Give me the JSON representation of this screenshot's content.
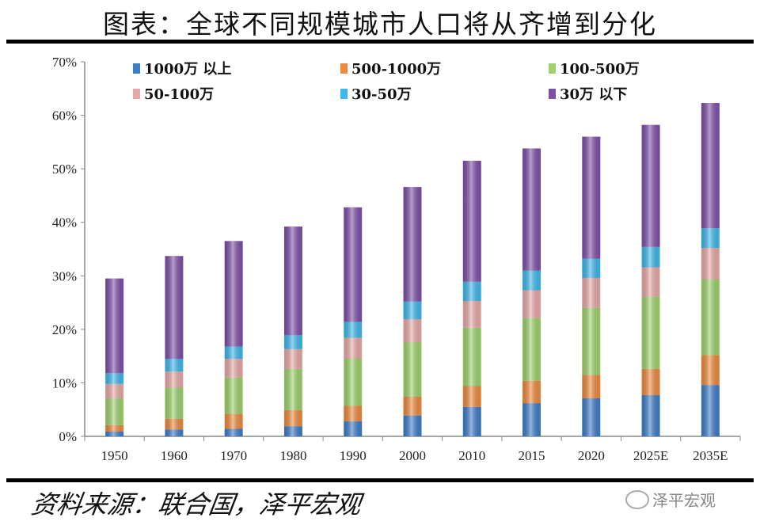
{
  "title": "图表：全球不同规模城市人口将从齐增到分化",
  "source": "资料来源：联合国，泽平宏观",
  "watermark": "泽平宏观",
  "chart_data": {
    "type": "bar",
    "stacked": true,
    "title": "",
    "xlabel": "",
    "ylabel": "",
    "ylim": [
      0,
      70
    ],
    "yticks": [
      "0%",
      "10%",
      "20%",
      "30%",
      "40%",
      "50%",
      "60%",
      "70%"
    ],
    "grid": false,
    "legend_position": "top",
    "categories": [
      "1950",
      "1960",
      "1970",
      "1980",
      "1990",
      "2000",
      "2010",
      "2015",
      "2020",
      "2025E",
      "2035E"
    ],
    "series": [
      {
        "name": "1000万 以上",
        "color": "#3d7cc9",
        "values": [
          0.9,
          1.3,
          1.4,
          1.9,
          2.8,
          3.9,
          5.5,
          6.2,
          7.1,
          7.7,
          9.6
        ]
      },
      {
        "name": "500-1000万",
        "color": "#ef8a3c",
        "values": [
          1.2,
          2.0,
          2.8,
          3.0,
          2.9,
          3.5,
          3.9,
          4.2,
          4.4,
          4.9,
          5.6
        ]
      },
      {
        "name": "100-500万",
        "color": "#9dd36a",
        "values": [
          5.0,
          5.8,
          6.8,
          7.7,
          8.8,
          10.2,
          10.9,
          11.7,
          12.5,
          13.5,
          14.1
        ]
      },
      {
        "name": "50-100万",
        "color": "#e8a9a6",
        "values": [
          2.7,
          3.0,
          3.5,
          3.7,
          3.9,
          4.3,
          5.0,
          5.2,
          5.6,
          5.5,
          5.9
        ]
      },
      {
        "name": "30-50万",
        "color": "#3cb8ec",
        "values": [
          2.0,
          2.4,
          2.3,
          2.6,
          3.0,
          3.3,
          3.6,
          3.7,
          3.6,
          3.8,
          3.7
        ]
      },
      {
        "name": "30万 以下",
        "color": "#7e4fa8",
        "values": [
          17.7,
          19.2,
          19.7,
          20.3,
          21.4,
          21.4,
          22.6,
          22.8,
          22.8,
          22.8,
          23.4
        ]
      }
    ]
  }
}
